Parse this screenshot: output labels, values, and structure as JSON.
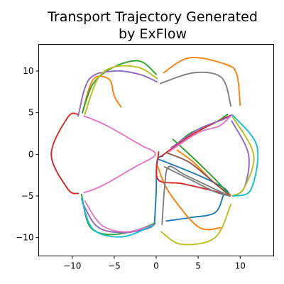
{
  "chart_data": {
    "type": "line",
    "title_line1": "Transport Trajectory Generated",
    "title_line2": "by ExFlow",
    "xlabel": "",
    "ylabel": "",
    "xlim": [
      -14,
      14
    ],
    "ylim": [
      -12.2,
      13.2
    ],
    "xticks": [
      -10,
      -5,
      0,
      5,
      10
    ],
    "yticks": [
      -10,
      -5,
      0,
      5,
      10
    ],
    "grid": false,
    "series": [
      {
        "color": "#1f77b4",
        "points": [
          [
            -0.2,
            -8.2
          ],
          [
            0.0,
            -4.5
          ],
          [
            0.1,
            -0.8
          ],
          [
            0.8,
            -0.2
          ]
        ]
      },
      {
        "color": "#1f77b4",
        "points": [
          [
            1.2,
            -8.0
          ],
          [
            4.0,
            -7.6
          ],
          [
            7.0,
            -7.0
          ],
          [
            8.0,
            -4.9
          ]
        ]
      },
      {
        "color": "#1f77b4",
        "points": [
          [
            0.3,
            -0.6
          ],
          [
            5.0,
            -2.5
          ],
          [
            8.0,
            -4.0
          ],
          [
            8.8,
            -4.9
          ]
        ]
      },
      {
        "color": "#ff7f0e",
        "points": [
          [
            0.9,
            9.8
          ],
          [
            4.0,
            11.6
          ],
          [
            8.3,
            10.8
          ],
          [
            9.6,
            9.6
          ],
          [
            10.0,
            5.9
          ]
        ]
      },
      {
        "color": "#ff7f0e",
        "points": [
          [
            -8.8,
            5.0
          ],
          [
            -7.5,
            9.0
          ],
          [
            -5.6,
            9.0
          ],
          [
            -5.0,
            7.0
          ],
          [
            -4.2,
            5.7
          ]
        ]
      },
      {
        "color": "#ff7f0e",
        "points": [
          [
            2.5,
            0.5
          ],
          [
            4.5,
            -1.0
          ],
          [
            7.0,
            -3.5
          ],
          [
            8.9,
            -4.9
          ]
        ]
      },
      {
        "color": "#ff7f0e",
        "points": [
          [
            0.2,
            -1.5
          ],
          [
            1.5,
            -4.5
          ],
          [
            5.0,
            -8.7
          ],
          [
            7.8,
            -8.8
          ]
        ]
      },
      {
        "color": "#2ca02c",
        "points": [
          [
            -8.8,
            5.0
          ],
          [
            -7.5,
            8.5
          ],
          [
            -5.0,
            10.5
          ],
          [
            -2.0,
            11.2
          ],
          [
            0.0,
            9.6
          ]
        ]
      },
      {
        "color": "#2ca02c",
        "points": [
          [
            1.5,
            0.3
          ],
          [
            4.0,
            2.5
          ],
          [
            7.0,
            3.8
          ],
          [
            8.5,
            4.8
          ]
        ]
      },
      {
        "color": "#2ca02c",
        "points": [
          [
            2.0,
            1.8
          ],
          [
            5.0,
            -1.0
          ],
          [
            7.5,
            -3.5
          ],
          [
            8.7,
            -4.9
          ]
        ]
      },
      {
        "color": "#2ca02c",
        "points": [
          [
            -8.9,
            -4.8
          ],
          [
            -8.0,
            -8.5
          ],
          [
            -6.0,
            -9.6
          ],
          [
            -3.0,
            -9.3
          ],
          [
            -0.2,
            -8.3
          ]
        ]
      },
      {
        "color": "#d62728",
        "points": [
          [
            -9.3,
            4.8
          ],
          [
            -10.5,
            4.5
          ],
          [
            -12.5,
            0.0
          ],
          [
            -10.5,
            -4.2
          ],
          [
            -9.3,
            -4.7
          ]
        ]
      },
      {
        "color": "#d62728",
        "points": [
          [
            0.5,
            -0.3
          ],
          [
            4.0,
            2.2
          ],
          [
            7.0,
            3.8
          ],
          [
            8.9,
            4.7
          ]
        ]
      },
      {
        "color": "#d62728",
        "points": [
          [
            0.3,
            0.3
          ],
          [
            0.2,
            -3.0
          ],
          [
            3.0,
            -3.5
          ],
          [
            6.5,
            -4.3
          ],
          [
            8.6,
            -4.9
          ]
        ]
      },
      {
        "color": "#9467bd",
        "points": [
          [
            -9.3,
            4.6
          ],
          [
            -8.0,
            9.0
          ],
          [
            -5.0,
            10.0
          ],
          [
            -2.0,
            9.6
          ],
          [
            0.1,
            8.7
          ]
        ]
      },
      {
        "color": "#9467bd",
        "points": [
          [
            1.8,
            0.8
          ],
          [
            5.0,
            3.0
          ],
          [
            8.0,
            4.2
          ],
          [
            9.0,
            4.7
          ]
        ]
      },
      {
        "color": "#9467bd",
        "points": [
          [
            9.0,
            4.0
          ],
          [
            11.0,
            0.0
          ],
          [
            10.5,
            -4.0
          ],
          [
            9.1,
            -5.0
          ]
        ]
      },
      {
        "color": "#9467bd",
        "points": [
          [
            -8.8,
            -5.8
          ],
          [
            -7.0,
            -8.7
          ],
          [
            -4.0,
            -9.4
          ],
          [
            -1.0,
            -8.9
          ],
          [
            -0.1,
            -8.3
          ]
        ]
      },
      {
        "color": "#8c564b",
        "points": [
          [
            1.2,
            0.2
          ],
          [
            4.0,
            -1.0
          ],
          [
            7.0,
            -3.5
          ],
          [
            8.8,
            -5.0
          ]
        ]
      },
      {
        "color": "#e377c2",
        "points": [
          [
            -8.6,
            4.6
          ],
          [
            -6.0,
            3.5
          ],
          [
            -2.0,
            1.2
          ],
          [
            -0.1,
            0.0
          ],
          [
            -2.5,
            -1.5
          ],
          [
            -6.5,
            -3.8
          ],
          [
            -8.6,
            -4.6
          ]
        ]
      },
      {
        "color": "#e377c2",
        "points": [
          [
            -8.5,
            -5.6
          ],
          [
            -6.5,
            -8.5
          ],
          [
            -3.5,
            -9.3
          ],
          [
            -0.5,
            -8.5
          ]
        ]
      },
      {
        "color": "#e377c2",
        "points": [
          [
            1.5,
            0.3
          ],
          [
            5.0,
            2.6
          ],
          [
            7.5,
            3.4
          ],
          [
            8.9,
            4.6
          ]
        ]
      },
      {
        "color": "#7f7f7f",
        "points": [
          [
            0.5,
            8.5
          ],
          [
            4.5,
            9.8
          ],
          [
            7.8,
            9.2
          ],
          [
            8.9,
            5.8
          ]
        ]
      },
      {
        "color": "#7f7f7f",
        "points": [
          [
            1.0,
            -1.5
          ],
          [
            4.0,
            -3.0
          ],
          [
            7.0,
            -4.5
          ],
          [
            8.8,
            -5.0
          ]
        ]
      },
      {
        "color": "#7f7f7f",
        "points": [
          [
            0.7,
            -8.4
          ],
          [
            1.0,
            -4.0
          ],
          [
            1.5,
            -1.5
          ],
          [
            3.5,
            -2.5
          ],
          [
            8.7,
            -5.0
          ]
        ]
      },
      {
        "color": "#bcbd22",
        "points": [
          [
            -8.5,
            4.8
          ],
          [
            -7.0,
            9.0
          ],
          [
            -5.0,
            10.5
          ],
          [
            -2.0,
            10.4
          ],
          [
            0.1,
            9.1
          ]
        ]
      },
      {
        "color": "#bcbd22",
        "points": [
          [
            0.6,
            -9.3
          ],
          [
            3.0,
            -10.8
          ],
          [
            7.0,
            -10.0
          ],
          [
            8.9,
            -6.0
          ]
        ]
      },
      {
        "color": "#bcbd22",
        "points": [
          [
            9.1,
            4.5
          ],
          [
            11.6,
            0.0
          ],
          [
            10.5,
            -4.0
          ],
          [
            9.1,
            -5.0
          ]
        ]
      },
      {
        "color": "#17becf",
        "points": [
          [
            -8.9,
            -5.3
          ],
          [
            -7.5,
            -9.0
          ],
          [
            -4.0,
            -9.9
          ],
          [
            -0.4,
            -8.5
          ]
        ]
      },
      {
        "color": "#17becf",
        "points": [
          [
            9.1,
            4.7
          ],
          [
            12.0,
            1.0
          ],
          [
            11.3,
            -4.2
          ],
          [
            9.2,
            -5.0
          ]
        ]
      }
    ]
  }
}
